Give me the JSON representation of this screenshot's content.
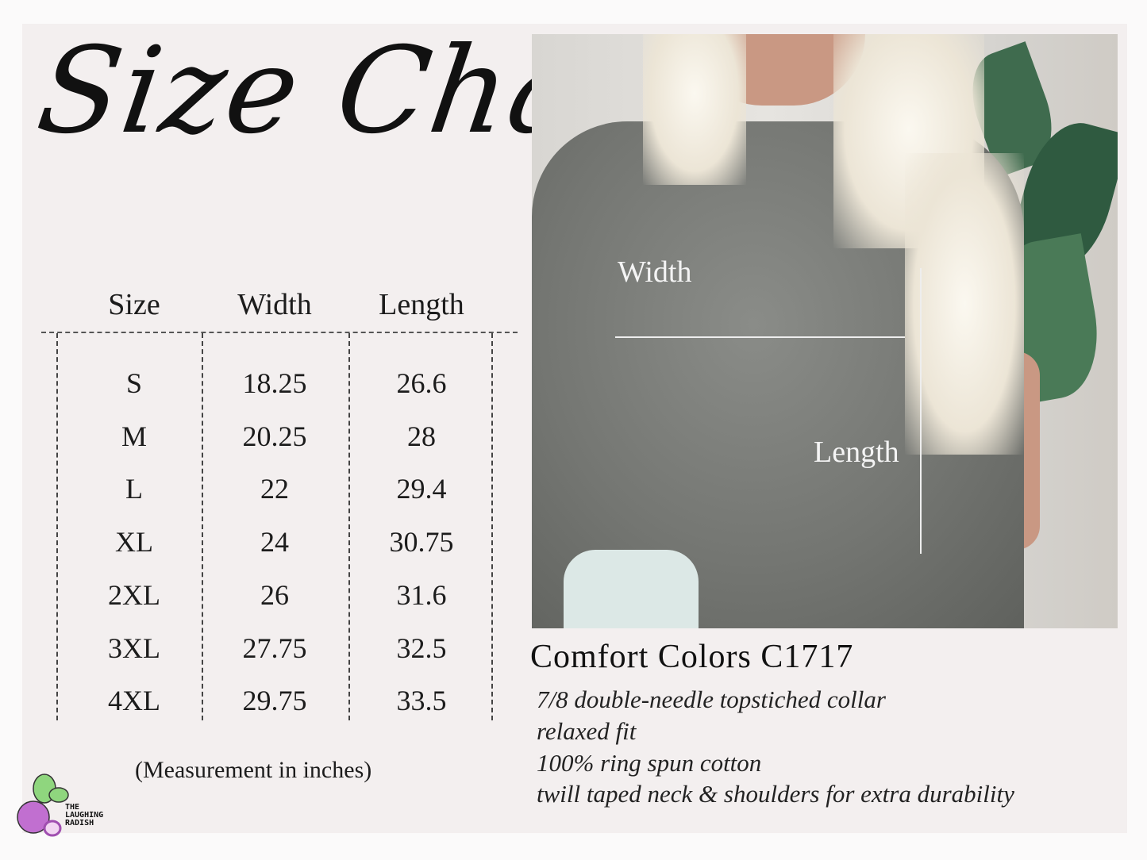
{
  "title": "Size Chart",
  "table": {
    "headers": [
      "Size",
      "Width",
      "Length"
    ],
    "rows": [
      [
        "S",
        "18.25",
        "26.6"
      ],
      [
        "M",
        "20.25",
        "28"
      ],
      [
        "L",
        "22",
        "29.4"
      ],
      [
        "XL",
        "24",
        "30.75"
      ],
      [
        "2XL",
        "26",
        "31.6"
      ],
      [
        "3XL",
        "27.75",
        "32.5"
      ],
      [
        "4XL",
        "29.75",
        "33.5"
      ]
    ],
    "note": "(Measurement in inches)"
  },
  "photo": {
    "width_label": "Width",
    "length_label": "Length"
  },
  "product": {
    "name": "Comfort Colors C1717",
    "features": [
      "7/8 double-needle topstiched collar",
      "relaxed fit",
      "100% ring spun cotton",
      "twill taped neck & shoulders for extra durability"
    ]
  },
  "logo": {
    "text": [
      "THE",
      "LAUGHING",
      "RADISH"
    ],
    "colors": {
      "radish": "#c16fd0",
      "leaf": "#8fd67e"
    }
  }
}
